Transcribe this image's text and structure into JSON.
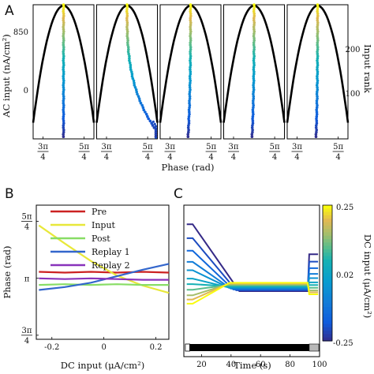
{
  "panel_labels": {
    "a": "A",
    "b": "B",
    "c": "C"
  },
  "colors": {
    "pre": "#cc2222",
    "input": "#e8e83a",
    "post": "#88dd66",
    "replay1": "#3366cc",
    "replay2": "#8833bb",
    "axis": "#000000",
    "ac_curve": "#000000",
    "timebar_white": "#ffffff",
    "timebar_black": "#000000",
    "timebar_gray": "#b8b8b8"
  },
  "chart_data": [
    {
      "id": "A",
      "type": "scatter",
      "title": "",
      "xlabel": "Phase (rad)",
      "ylabel": "AC input (nA/cm²)",
      "ylabel_right": "Input rank",
      "x_ticks": [
        {
          "num": "3π",
          "den": "4"
        },
        {
          "num": "5π",
          "den": "4"
        }
      ],
      "y_ticks_left": [
        "850",
        "0"
      ],
      "y_ticks_right": [
        "200",
        "100"
      ],
      "colormap": "parula",
      "xlim": [
        1.98,
        4.3
      ],
      "ylim_rank": [
        0,
        270
      ],
      "ac_curve": {
        "amplitude": 850,
        "center_phase": 3.14
      },
      "n_subpanels": 5,
      "subpanels": [
        {
          "index": 1,
          "phase_drift": 0.0,
          "tail_spread": 0.03
        },
        {
          "index": 2,
          "phase_drift": 1.35,
          "tail_spread": 0.1
        },
        {
          "index": 3,
          "phase_drift": -0.1,
          "tail_spread": 0.03
        },
        {
          "index": 4,
          "phase_drift": -0.08,
          "tail_spread": 0.03
        },
        {
          "index": 5,
          "phase_drift": -0.06,
          "tail_spread": 0.03
        }
      ]
    },
    {
      "id": "B",
      "type": "line",
      "title": "",
      "xlabel": "DC input (μA/cm²)",
      "ylabel": "Phase (rad)",
      "x_ticks": [
        "-0.2",
        "0",
        "0.2"
      ],
      "y_ticks": [
        {
          "value": 3.927,
          "num": "5π",
          "den": "4"
        },
        {
          "value": 3.1416,
          "label": "π"
        },
        {
          "value": 2.356,
          "num": "3π",
          "den": "4"
        }
      ],
      "xlim": [
        -0.26,
        0.25
      ],
      "ylim": [
        2.3,
        4.15
      ],
      "legend": [
        "Pre",
        "Input",
        "Post",
        "Replay 1",
        "Replay 2"
      ],
      "legend_position": "top-right",
      "x": [
        -0.25,
        -0.15,
        -0.05,
        0.05,
        0.15,
        0.25
      ],
      "series": [
        {
          "name": "Pre",
          "values": [
            3.23,
            3.22,
            3.23,
            3.22,
            3.23,
            3.22
          ]
        },
        {
          "name": "Input",
          "values": [
            3.87,
            3.62,
            3.38,
            3.18,
            3.04,
            2.94
          ]
        },
        {
          "name": "Post",
          "values": [
            3.05,
            3.06,
            3.05,
            3.06,
            3.05,
            3.05
          ]
        },
        {
          "name": "Replay 1",
          "values": [
            2.98,
            3.02,
            3.08,
            3.17,
            3.26,
            3.34
          ]
        },
        {
          "name": "Replay 2",
          "values": [
            3.14,
            3.13,
            3.14,
            3.13,
            3.12,
            3.12
          ]
        }
      ]
    },
    {
      "id": "C",
      "type": "line",
      "title": "",
      "xlabel": "Time (s)",
      "x_ticks": [
        "20",
        "40",
        "60",
        "80",
        "100"
      ],
      "xlim": [
        8,
        100
      ],
      "colorbar": {
        "label": "DC input (μA/cm²)",
        "ticks": [
          "0.25",
          "0.02",
          "-0.25"
        ],
        "colormap": "parula"
      },
      "converge_value": 0.5,
      "traces": [
        {
          "dc": -0.25,
          "start": 0.95
        },
        {
          "dc": -0.2,
          "start": 0.85
        },
        {
          "dc": -0.15,
          "start": 0.76
        },
        {
          "dc": -0.1,
          "start": 0.68
        },
        {
          "dc": -0.05,
          "start": 0.62
        },
        {
          "dc": 0.0,
          "start": 0.56
        },
        {
          "dc": 0.05,
          "start": 0.52
        },
        {
          "dc": 0.1,
          "start": 0.48
        },
        {
          "dc": 0.15,
          "start": 0.44
        },
        {
          "dc": 0.2,
          "start": 0.41
        },
        {
          "dc": 0.25,
          "start": 0.38
        }
      ],
      "time_bar": {
        "white_end": 12,
        "black_end": 93
      }
    }
  ]
}
